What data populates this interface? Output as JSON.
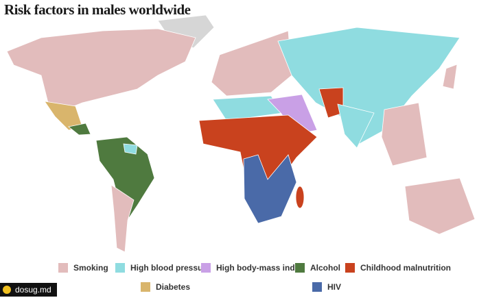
{
  "title": "Risk factors in males worldwide",
  "legend": [
    {
      "name": "Smoking",
      "color": "#e2bcbc"
    },
    {
      "name": "High blood pressure",
      "color": "#8fdce0"
    },
    {
      "name": "High body-mass index",
      "color": "#c9a0e6"
    },
    {
      "name": "Alcohol",
      "color": "#4f7a3f"
    },
    {
      "name": "Childhood malnutrition",
      "color": "#c9421e"
    },
    {
      "name": "Diabetes",
      "color": "#d9b56c"
    },
    {
      "name": "HIV",
      "color": "#4a6aa8"
    }
  ],
  "watermark": "dosug.md"
}
